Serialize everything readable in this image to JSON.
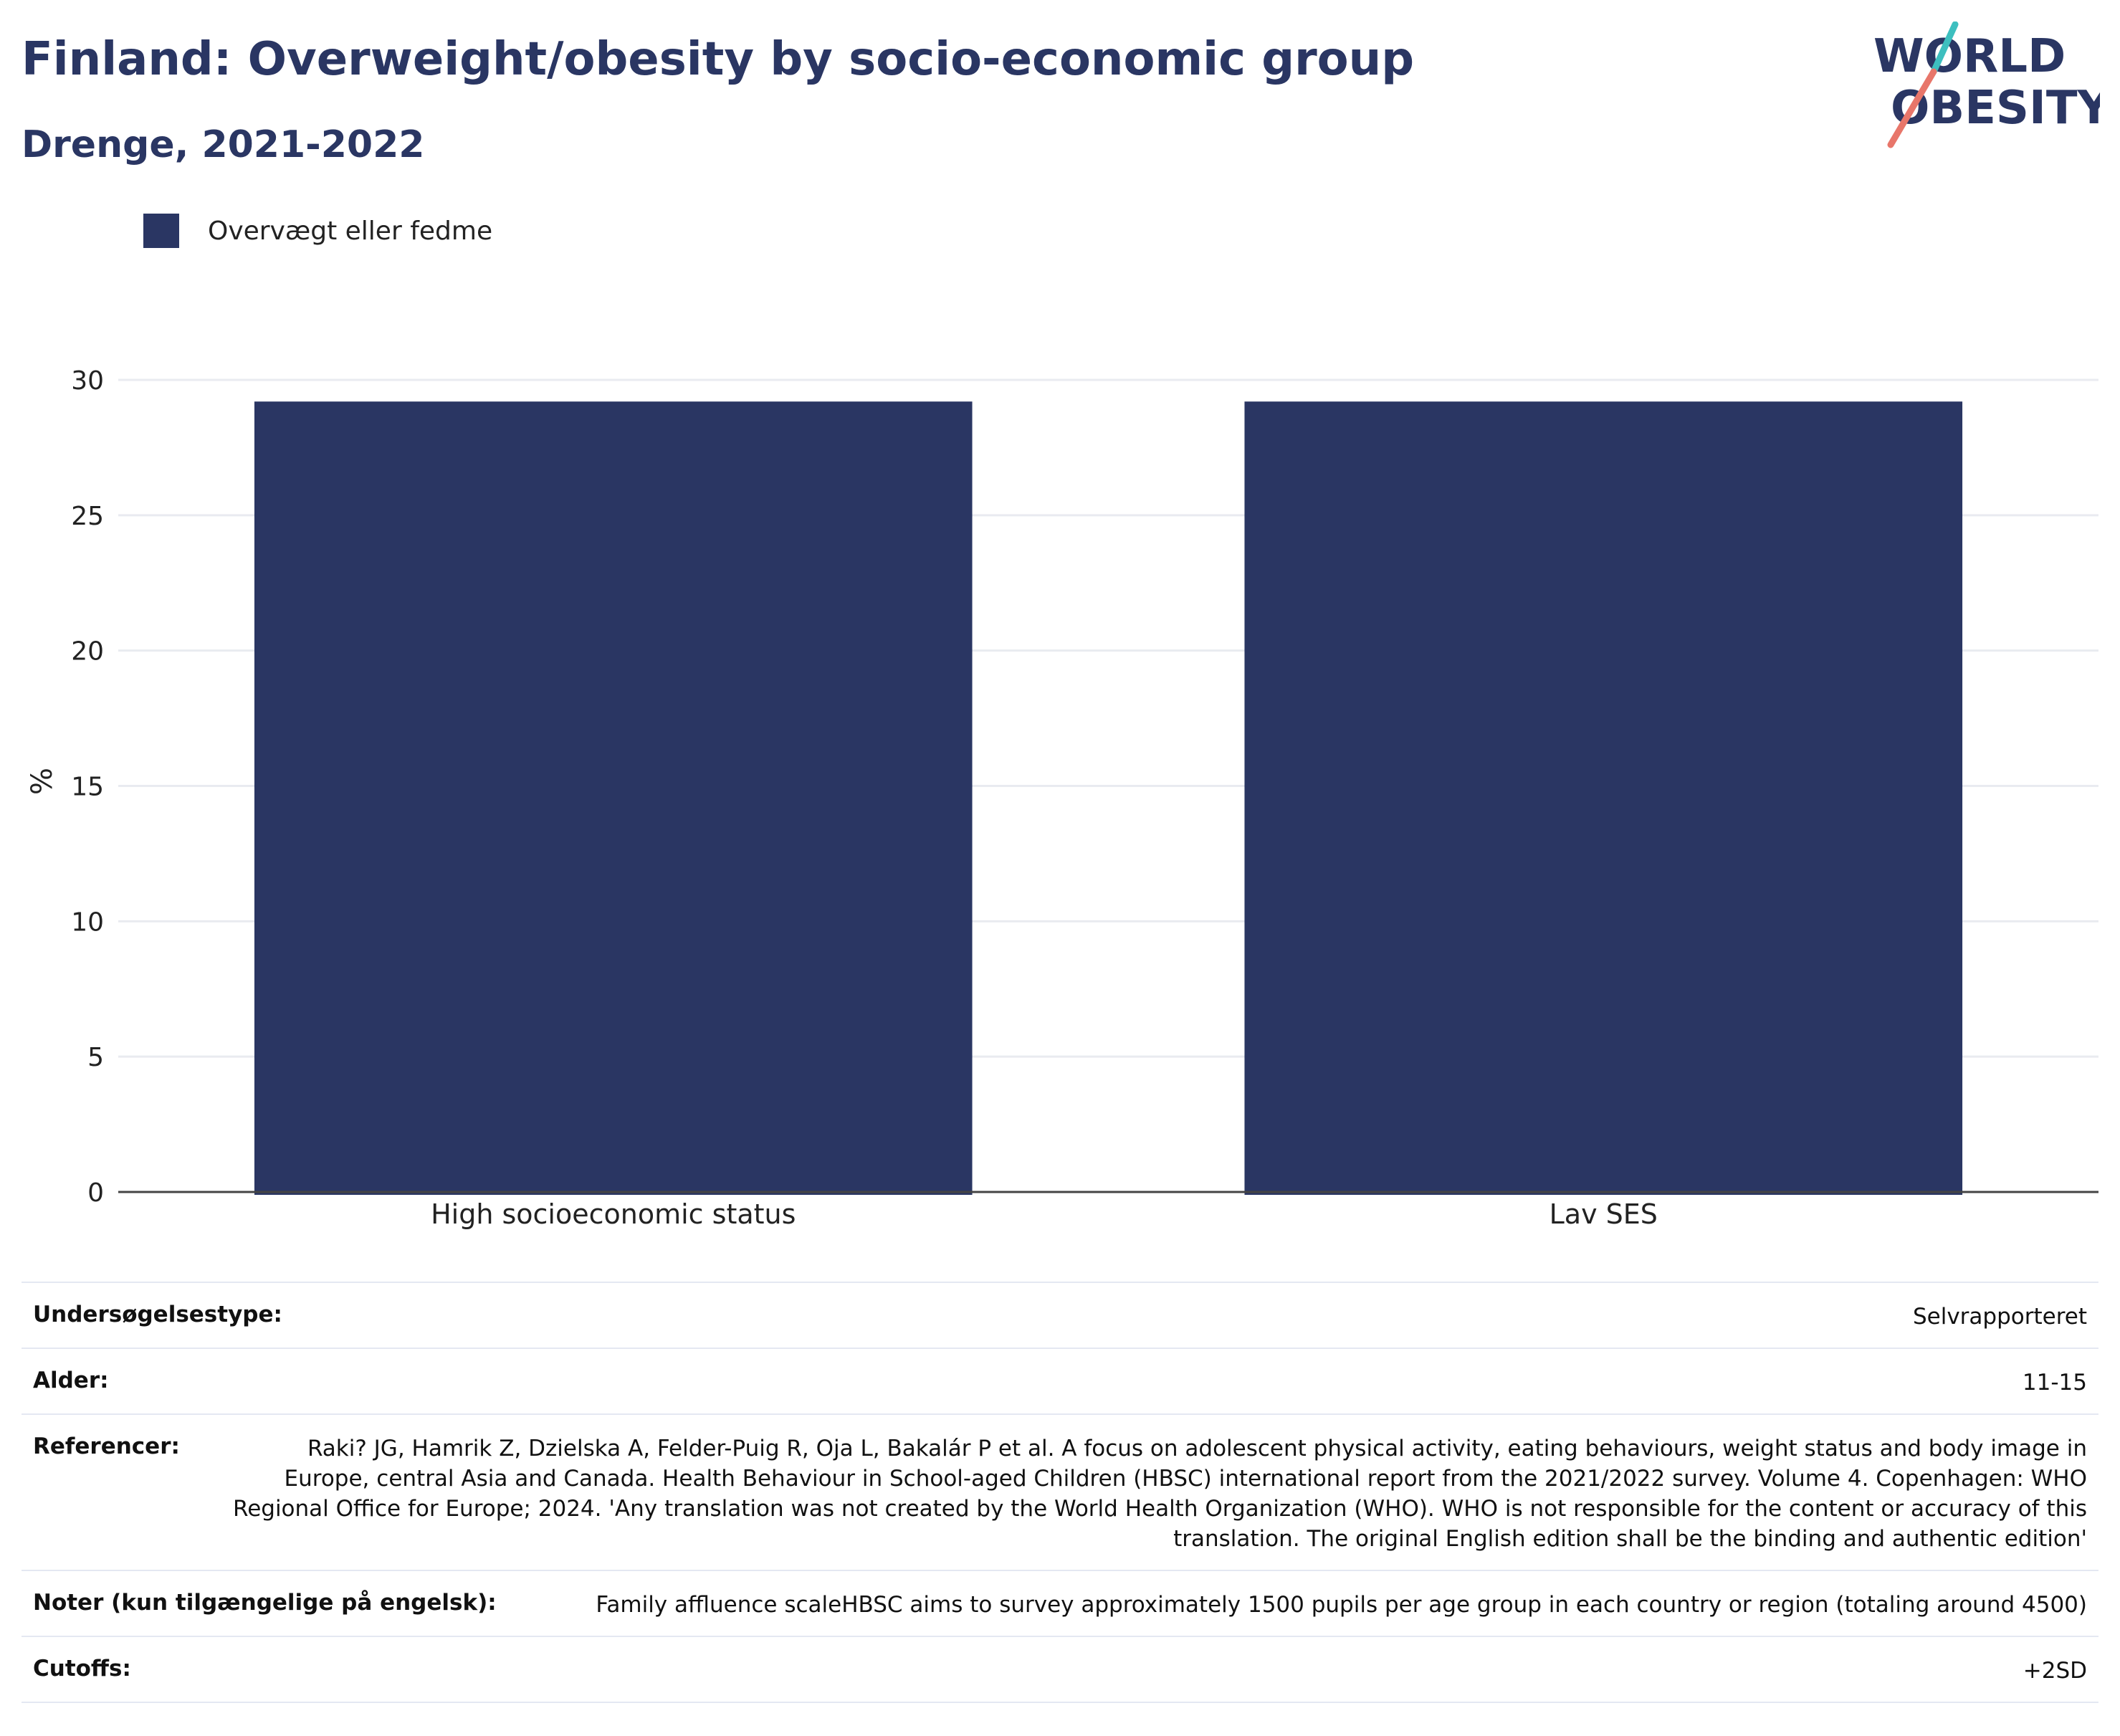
{
  "header": {
    "title": "Finland: Overweight/obesity by socio-economic group",
    "subtitle": "Drenge, 2021-2022"
  },
  "logo": {
    "text_line1": "WORLD",
    "text_line2": "OBESITY",
    "colors": {
      "text": "#2a3663",
      "slash_top": "#3dbfbf",
      "slash_bottom": "#e8766a"
    }
  },
  "legend": {
    "items": [
      {
        "label": "Overvægt eller fedme",
        "color": "#2a3663"
      }
    ]
  },
  "chart_data": {
    "type": "bar",
    "categories": [
      "High socioeconomic status",
      "Lav SES"
    ],
    "series": [
      {
        "name": "Overvægt eller fedme",
        "values": [
          29.2,
          29.2
        ],
        "color": "#2a3663"
      }
    ],
    "title": "Finland: Overweight/obesity by socio-economic group",
    "subtitle": "Drenge, 2021-2022",
    "xlabel": "",
    "ylabel": "%",
    "ylim": [
      0,
      30
    ],
    "yticks": [
      0,
      5,
      10,
      15,
      20,
      25,
      30
    ],
    "grid": true,
    "legend_position": "top-left"
  },
  "meta": {
    "rows": [
      {
        "key": "Undersøgelsestype:",
        "value": "Selvrapporteret"
      },
      {
        "key": "Alder:",
        "value": "11-15"
      },
      {
        "key": "Referencer:",
        "value": "Raki? JG, Hamrik Z, Dzielska A, Felder-Puig R, Oja L, Bakalár P et al. A focus on adolescent physical activity, eating behaviours, weight status and body image in Europe, central Asia and Canada. Health Behaviour in School-aged Children (HBSC) international report from the 2021/2022 survey. Volume 4. Copenhagen: WHO Regional Office for Europe; 2024. 'Any translation was not created by the World Health Organization (WHO). WHO is not responsible for the content or accuracy of this translation. The original English edition shall be the binding and authentic edition'"
      },
      {
        "key": "Noter (kun tilgængelige på engelsk):",
        "value": "Family affluence scaleHBSC aims to survey approximately 1500 pupils per age group in each country or region (totaling around 4500)"
      },
      {
        "key": "Cutoffs:",
        "value": "+2SD"
      }
    ]
  }
}
